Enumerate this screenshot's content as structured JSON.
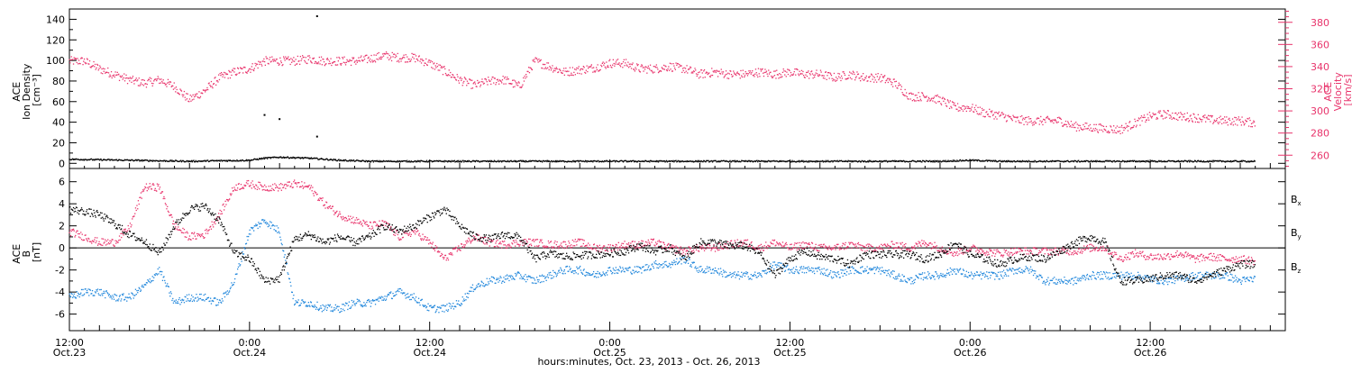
{
  "colors": {
    "density": "#000000",
    "velocity": "#e8336b",
    "bx": "#000000",
    "by": "#1f86db",
    "bz": "#e8336b"
  },
  "chart_data": [
    {
      "type": "scatter",
      "panel": "top",
      "ylabel_lines": [
        "ACE",
        "Ion Density",
        "[cm⁻³]"
      ],
      "ylim": [
        -5,
        150
      ],
      "yticks": [
        0,
        20,
        40,
        60,
        80,
        100,
        120,
        140
      ],
      "y2label_lines": [
        "ACE",
        "Velocity",
        "[km/s]"
      ],
      "y2lim": [
        248,
        392
      ],
      "y2ticks": [
        260,
        280,
        300,
        320,
        340,
        360,
        380
      ],
      "xlim_hours": [
        0,
        81
      ],
      "series": [
        {
          "key": "density",
          "axis": "left",
          "x": [
            0,
            4,
            8,
            12,
            13,
            14,
            16,
            18,
            20,
            22,
            24,
            26,
            27,
            28,
            30,
            32,
            34,
            36,
            38,
            40,
            42,
            44,
            46,
            48,
            50,
            52,
            54,
            56,
            58,
            60,
            62,
            64,
            66,
            68,
            70,
            72,
            74,
            76,
            78,
            79
          ],
          "y": [
            4,
            3,
            2,
            3,
            5,
            6,
            5,
            3,
            2,
            2,
            2,
            2,
            2,
            2,
            2,
            2,
            2,
            2,
            2,
            2,
            2,
            2,
            2,
            2,
            2,
            2,
            2,
            2,
            2,
            3,
            2,
            2,
            2,
            2,
            2,
            2,
            2,
            2,
            2,
            2
          ],
          "outliers_x": [
            13,
            14,
            16.5,
            16.5
          ],
          "outliers_y": [
            47,
            43,
            143,
            26
          ]
        },
        {
          "key": "velocity",
          "axis": "right",
          "x": [
            0,
            1,
            2,
            3,
            4,
            5,
            6,
            7,
            8,
            9,
            10,
            11,
            12,
            13,
            14,
            15,
            16,
            17,
            18,
            19,
            20,
            21,
            22,
            23,
            24,
            25,
            26,
            27,
            28,
            29,
            30,
            31,
            32,
            33,
            34,
            35,
            36,
            37,
            38,
            39,
            40,
            41,
            42,
            43,
            44,
            45,
            46,
            47,
            48,
            49,
            50,
            51,
            52,
            53,
            54,
            55,
            56,
            57,
            58,
            59,
            60,
            61,
            62,
            63,
            64,
            65,
            66,
            67,
            68,
            69,
            70,
            71,
            72,
            73,
            74,
            75,
            76,
            77,
            78,
            79
          ],
          "y": [
            345,
            345,
            338,
            333,
            328,
            325,
            328,
            322,
            310,
            318,
            330,
            335,
            338,
            345,
            345,
            345,
            347,
            345,
            345,
            345,
            347,
            350,
            348,
            348,
            343,
            336,
            328,
            323,
            327,
            328,
            322,
            345,
            340,
            335,
            337,
            339,
            343,
            343,
            338,
            338,
            340,
            338,
            333,
            335,
            333,
            333,
            335,
            333,
            335,
            333,
            333,
            330,
            333,
            330,
            330,
            325,
            313,
            313,
            310,
            303,
            303,
            298,
            296,
            292,
            291,
            291,
            291,
            286,
            285,
            284,
            283,
            289,
            295,
            297,
            295,
            294,
            292,
            291,
            291,
            289
          ]
        }
      ]
    },
    {
      "type": "scatter",
      "panel": "bottom",
      "ylabel_lines": [
        "ACE",
        "B",
        "[nT]"
      ],
      "ylim": [
        -7.5,
        7.2
      ],
      "yticks": [
        -6,
        -4,
        -2,
        0,
        2,
        4,
        6
      ],
      "zero_line": true,
      "legend_position": "right",
      "legend": [
        {
          "key": "bx",
          "main": "B",
          "sub": "x"
        },
        {
          "key": "by",
          "main": "B",
          "sub": "y"
        },
        {
          "key": "bz",
          "main": "B",
          "sub": "z"
        }
      ],
      "xlim_hours": [
        0,
        81
      ],
      "series": [
        {
          "key": "bx",
          "x": [
            0,
            1,
            2,
            3,
            4,
            5,
            6,
            7,
            8,
            9,
            10,
            11,
            12,
            13,
            14,
            15,
            16,
            17,
            18,
            19,
            20,
            21,
            22,
            23,
            24,
            25,
            26,
            27,
            28,
            29,
            30,
            31,
            32,
            33,
            34,
            35,
            36,
            37,
            38,
            39,
            40,
            41,
            42,
            43,
            44,
            45,
            46,
            47,
            48,
            49,
            50,
            51,
            52,
            53,
            54,
            55,
            56,
            57,
            58,
            59,
            60,
            61,
            62,
            63,
            64,
            65,
            66,
            67,
            68,
            69,
            70,
            71,
            72,
            73,
            74,
            75,
            76,
            77,
            78,
            79
          ],
          "y": [
            3.5,
            3.3,
            3.0,
            2.2,
            1.2,
            0.6,
            -0.5,
            2.0,
            3.5,
            3.8,
            2.5,
            -0.5,
            -1.0,
            -3.0,
            -2.8,
            0.8,
            1.2,
            0.5,
            1.0,
            0.5,
            1.0,
            2.0,
            1.5,
            2.0,
            2.8,
            3.5,
            2.0,
            1.0,
            0.8,
            1.2,
            1.0,
            -1.0,
            -0.5,
            -0.8,
            -0.7,
            -0.6,
            -0.5,
            -0.3,
            0.2,
            -0.3,
            0.0,
            -1.0,
            0.5,
            0.5,
            0.2,
            0.2,
            -0.5,
            -2.5,
            -1.0,
            -0.3,
            -0.8,
            -1.0,
            -1.5,
            -0.6,
            -0.6,
            -0.6,
            -0.6,
            -1.0,
            -0.6,
            0.5,
            -0.6,
            -1.0,
            -1.5,
            -1.0,
            -0.8,
            -1.0,
            -0.3,
            0.5,
            1.0,
            0.5,
            -3.0,
            -3.0,
            -2.8,
            -2.5,
            -2.5,
            -3.0,
            -2.5,
            -2.0,
            -1.5,
            -1.5
          ]
        },
        {
          "key": "by",
          "x": [
            0,
            1,
            2,
            3,
            4,
            5,
            6,
            7,
            8,
            9,
            10,
            11,
            12,
            13,
            14,
            15,
            16,
            17,
            18,
            19,
            20,
            21,
            22,
            23,
            24,
            25,
            26,
            27,
            28,
            29,
            30,
            31,
            32,
            33,
            34,
            35,
            36,
            37,
            38,
            39,
            40,
            41,
            42,
            43,
            44,
            45,
            46,
            47,
            48,
            49,
            50,
            51,
            52,
            53,
            54,
            55,
            56,
            57,
            58,
            59,
            60,
            61,
            62,
            63,
            64,
            65,
            66,
            67,
            68,
            69,
            70,
            71,
            72,
            73,
            74,
            75,
            76,
            77,
            78,
            79
          ],
          "y": [
            -4.5,
            -4.0,
            -4.0,
            -4.5,
            -4.5,
            -3.5,
            -2.0,
            -5.0,
            -4.5,
            -4.5,
            -5.0,
            -3.0,
            1.5,
            2.5,
            1.5,
            -5.0,
            -5.0,
            -5.5,
            -5.5,
            -5.0,
            -5.0,
            -4.5,
            -4.0,
            -4.5,
            -5.5,
            -5.5,
            -5.0,
            -3.5,
            -3.0,
            -2.8,
            -2.5,
            -3.0,
            -2.5,
            -2.0,
            -2.0,
            -2.5,
            -2.0,
            -2.0,
            -2.0,
            -1.5,
            -1.5,
            -1.0,
            -2.0,
            -2.0,
            -2.5,
            -2.5,
            -2.5,
            -1.5,
            -2.0,
            -2.0,
            -2.0,
            -2.5,
            -2.0,
            -2.0,
            -2.0,
            -2.5,
            -3.0,
            -2.5,
            -2.5,
            -2.0,
            -2.5,
            -2.5,
            -2.5,
            -2.0,
            -2.0,
            -3.0,
            -3.0,
            -3.0,
            -2.5,
            -2.5,
            -2.5,
            -2.5,
            -2.8,
            -3.0,
            -2.8,
            -2.5,
            -2.5,
            -2.5,
            -3.0,
            -2.8
          ]
        },
        {
          "key": "bz",
          "x": [
            0,
            1,
            2,
            3,
            4,
            5,
            6,
            7,
            8,
            9,
            10,
            11,
            12,
            13,
            14,
            15,
            16,
            17,
            18,
            19,
            20,
            21,
            22,
            23,
            24,
            25,
            26,
            27,
            28,
            29,
            30,
            31,
            32,
            33,
            34,
            35,
            36,
            37,
            38,
            39,
            40,
            41,
            42,
            43,
            44,
            45,
            46,
            47,
            48,
            49,
            50,
            51,
            52,
            53,
            54,
            55,
            56,
            57,
            58,
            59,
            60,
            61,
            62,
            63,
            64,
            65,
            66,
            67,
            68,
            69,
            70,
            71,
            72,
            73,
            74,
            75,
            76,
            77,
            78,
            79
          ],
          "y": [
            1.5,
            1.0,
            0.5,
            0.5,
            1.8,
            5.5,
            5.5,
            2.0,
            1.0,
            1.2,
            3.0,
            5.5,
            5.8,
            5.5,
            5.5,
            5.8,
            5.5,
            4.0,
            3.0,
            2.5,
            2.0,
            2.2,
            1.0,
            1.5,
            0.5,
            -1.0,
            0.0,
            1.0,
            0.5,
            0.3,
            0.5,
            0.5,
            0.3,
            0.3,
            0.5,
            0.0,
            0.0,
            0.3,
            0.3,
            0.5,
            0.0,
            -0.3,
            0.0,
            0.0,
            0.3,
            0.5,
            0.0,
            0.5,
            0.0,
            0.3,
            0.0,
            0.0,
            0.3,
            0.0,
            0.0,
            0.3,
            0.0,
            0.5,
            0.0,
            -0.5,
            0.0,
            -0.3,
            -0.5,
            -0.3,
            -0.3,
            -0.3,
            -0.3,
            -0.3,
            0.0,
            0.0,
            -1.0,
            -0.5,
            -0.8,
            -0.8,
            -0.5,
            -1.0,
            -0.8,
            -1.0,
            -1.0,
            -1.2
          ]
        }
      ]
    }
  ],
  "x_axis": {
    "ticks": [
      {
        "hour": 0,
        "time": "12:00",
        "date": "Oct.23"
      },
      {
        "hour": 12,
        "time": "0:00",
        "date": "Oct.24"
      },
      {
        "hour": 24,
        "time": "12:00",
        "date": "Oct.24"
      },
      {
        "hour": 36,
        "time": "0:00",
        "date": "Oct.25"
      },
      {
        "hour": 48,
        "time": "12:00",
        "date": "Oct.25"
      },
      {
        "hour": 60,
        "time": "0:00",
        "date": "Oct.26"
      },
      {
        "hour": 72,
        "time": "12:00",
        "date": "Oct.26"
      }
    ],
    "title": "hours:minutes, Oct. 23, 2013 - Oct. 26, 2013"
  }
}
